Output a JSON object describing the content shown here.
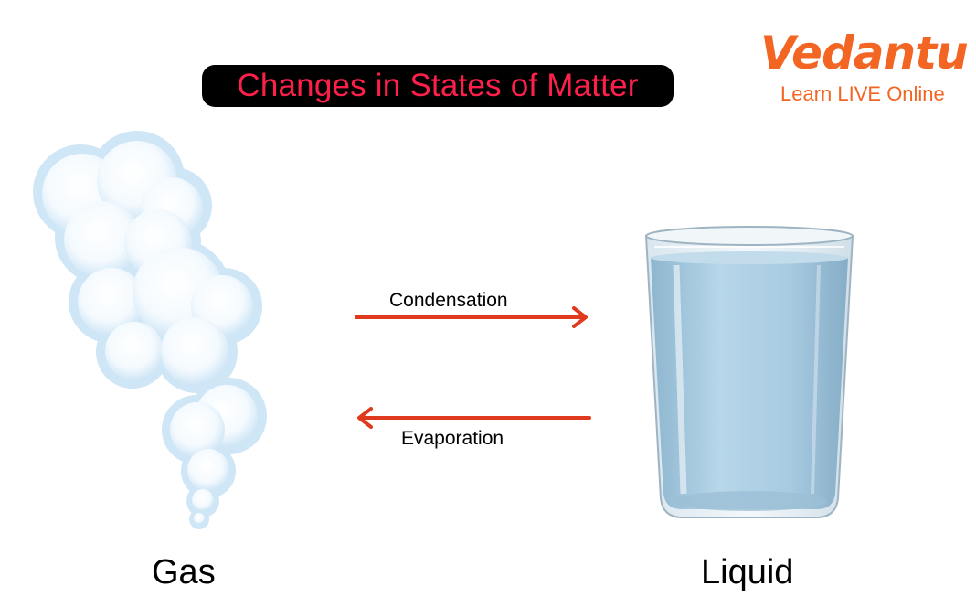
{
  "title": "Changes in States of Matter",
  "logo": {
    "brand": "Vedantu",
    "tagline": "Learn LIVE Online"
  },
  "arrows": {
    "forward_label": "Condensation",
    "backward_label": "Evaporation"
  },
  "states": {
    "left": "Gas",
    "right": "Liquid"
  },
  "colors": {
    "title_background": "#000000",
    "title_text": "#ff1f4b",
    "brand": "#f26522",
    "arrow": "#e03a1e",
    "cloud": "#dff0fb",
    "water": "#a9cbe0"
  },
  "icons": {
    "left": "cloud-gas-icon",
    "right": "glass-of-water-icon"
  }
}
